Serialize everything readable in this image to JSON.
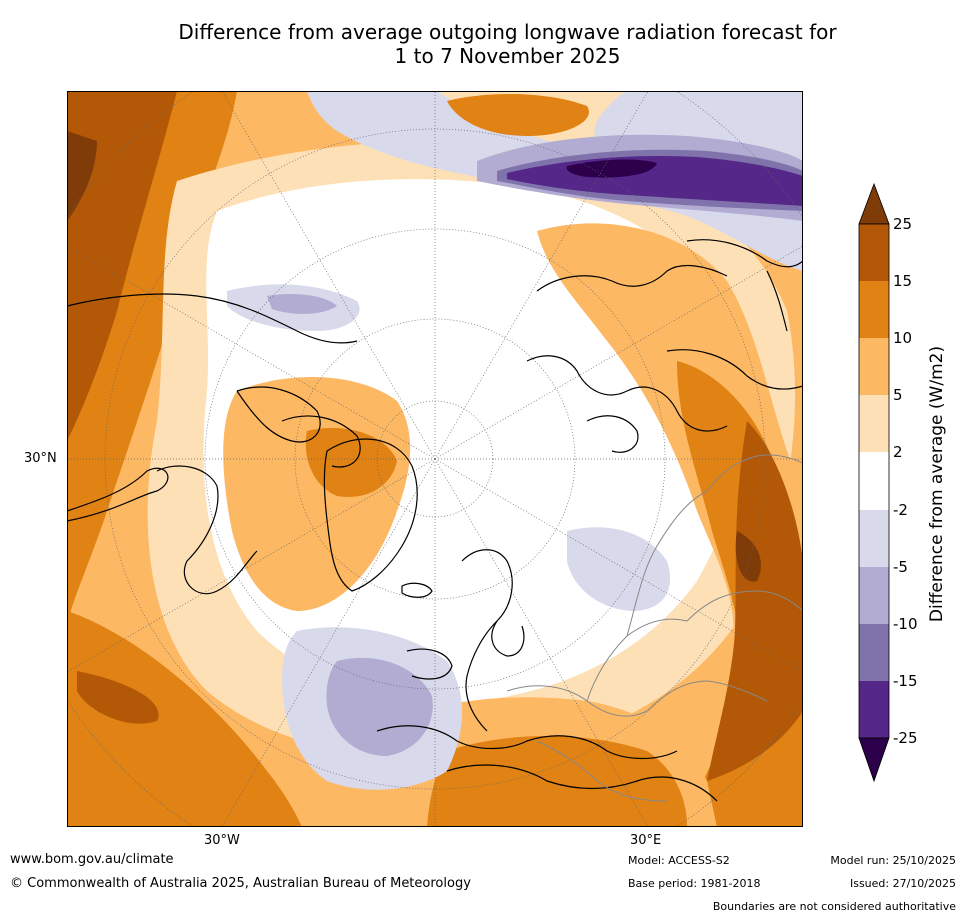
{
  "title": {
    "line1": "Difference from average outgoing longwave radiation forecast for",
    "line2": "1 to 7 November 2025"
  },
  "map": {
    "projection": "north-polar-stereographic",
    "lat_label": "30°N",
    "lon_labels": [
      "30°W",
      "30°E"
    ]
  },
  "colorbar": {
    "label": "Difference from average (W/m2)",
    "ticks": [
      "25",
      "15",
      "10",
      "5",
      "2",
      "-2",
      "-5",
      "-10",
      "-15",
      "-25"
    ],
    "colors": {
      "over": "#7f3b08",
      "b15_25": "#b35806",
      "b10_15": "#e08214",
      "b5_10": "#fdb863",
      "b2_5": "#fee0b6",
      "bneg2_2": "#ffffff",
      "bneg5_neg2": "#d8daeb",
      "bneg10_neg5": "#b2abd2",
      "bneg15_neg10": "#8073ac",
      "bneg25_neg15": "#542788",
      "under": "#2d004b"
    }
  },
  "footer": {
    "website": "www.bom.gov.au/climate",
    "copyright": "© Commonwealth of Australia 2025, Australian Bureau of Meteorology",
    "model": "Model: ACCESS-S2",
    "base_period": "Base period: 1981-2018",
    "model_run": "Model run: 25/10/2025",
    "issued": "Issued: 27/10/2025",
    "disclaimer": "Boundaries are not considered authoritative"
  }
}
